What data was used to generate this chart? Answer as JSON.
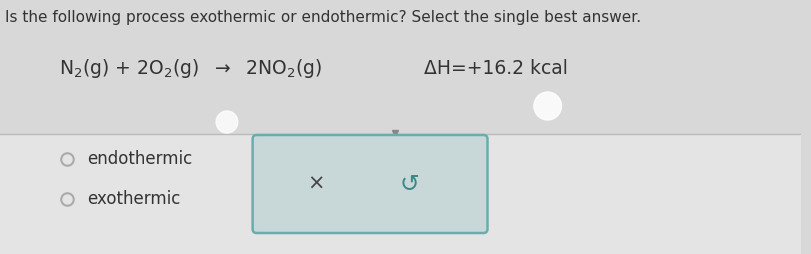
{
  "question": "Is the following process exothermic or endothermic? Select the single best answer.",
  "delta_h": "ΔH=+16.2 kcal",
  "option1": "endothermic",
  "option2": "exothermic",
  "bg_top_color": "#d8d8d8",
  "bg_bottom_color": "#e8e8e8",
  "box_bg": "#c8d8d8",
  "box_border": "#6aadad",
  "question_fontsize": 11.0,
  "equation_fontsize": 13.5,
  "option_fontsize": 12,
  "cross_fontsize": 15,
  "redo_fontsize": 17,
  "cross_color": "#444444",
  "redo_color": "#3a8888",
  "text_color": "#333333",
  "separator_color": "#bbbbbb",
  "circle_color": "#aaaaaa"
}
